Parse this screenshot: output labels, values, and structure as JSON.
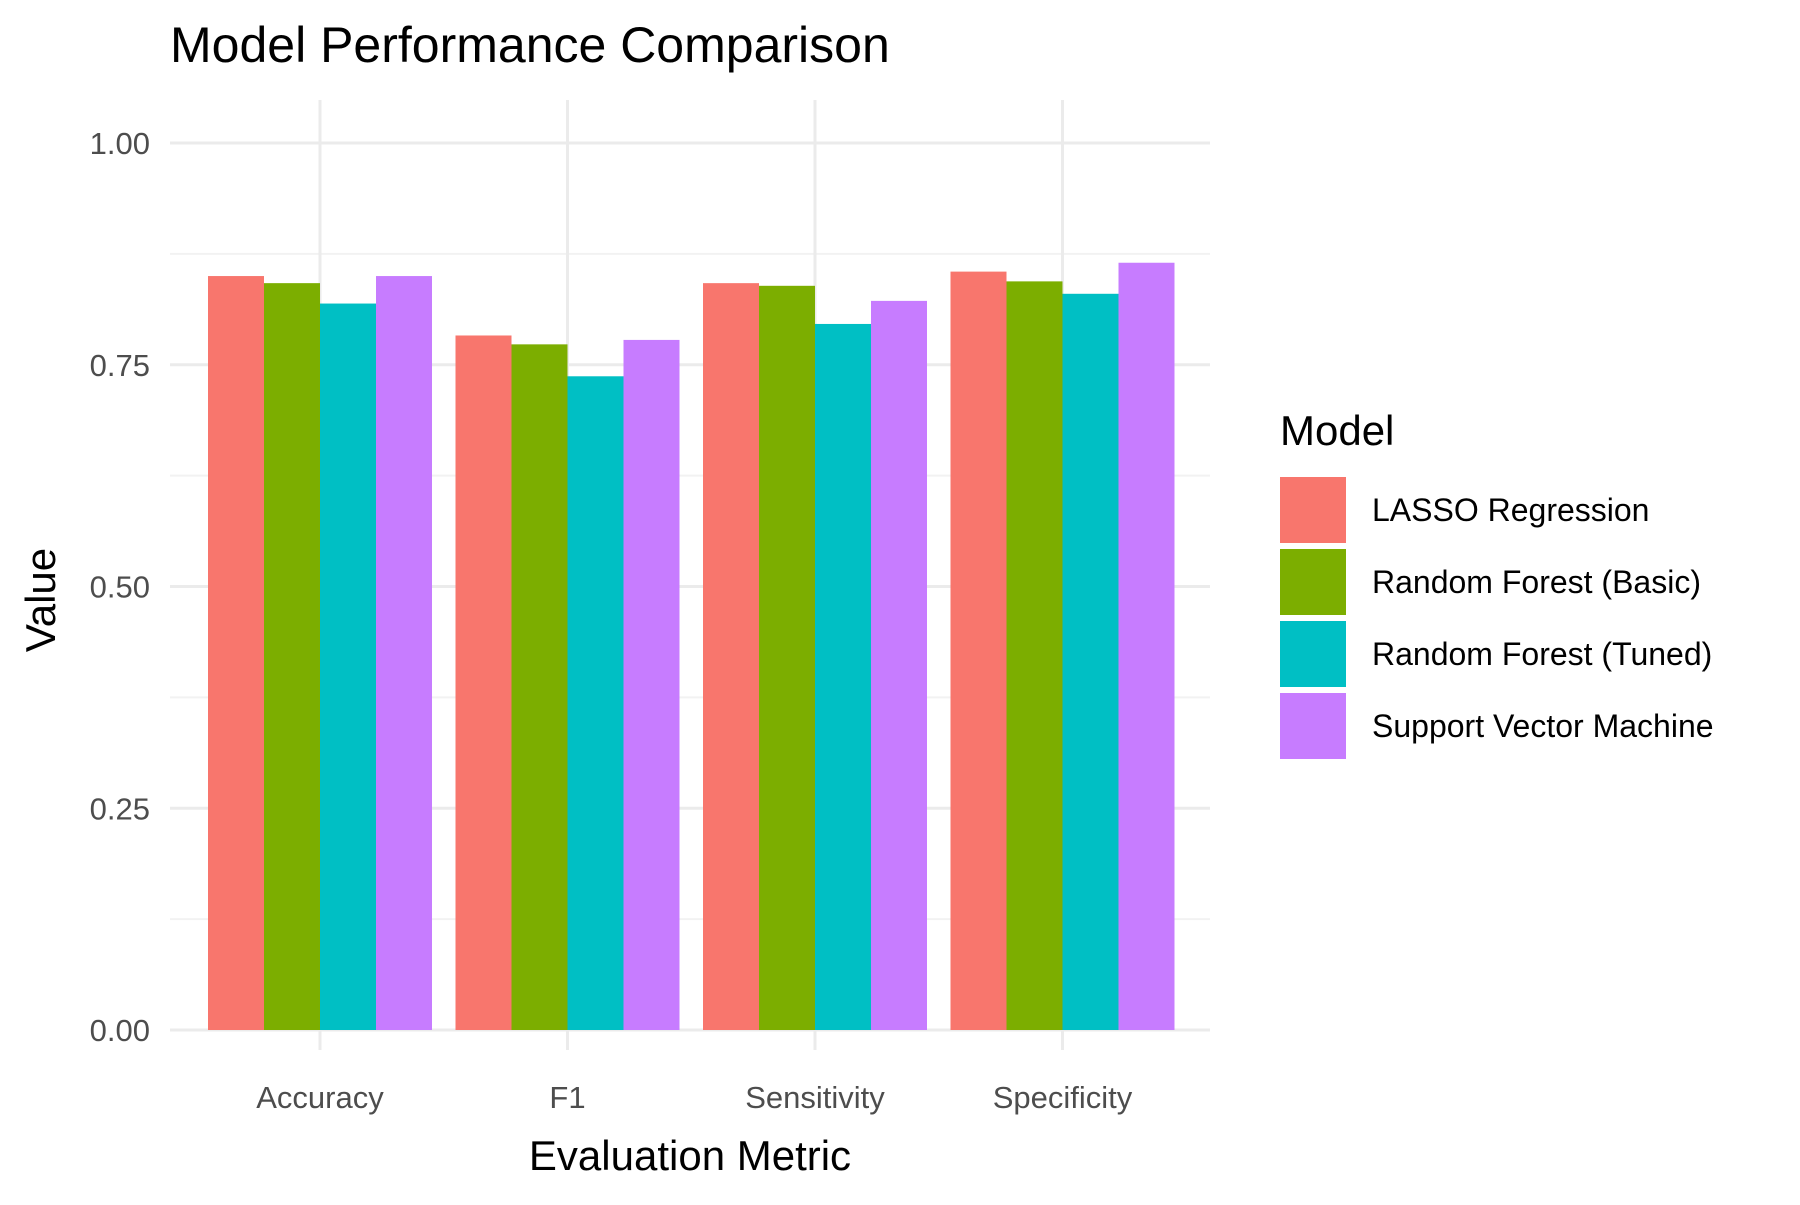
{
  "chart_data": {
    "type": "bar",
    "title": "Model Performance Comparison",
    "xlabel": "Evaluation Metric",
    "ylabel": "Value",
    "categories": [
      "Accuracy",
      "F1",
      "Sensitivity",
      "Specificity"
    ],
    "ylim": [
      0,
      1.0
    ],
    "yticks": [
      "0.00",
      "0.25",
      "0.50",
      "0.75",
      "1.00"
    ],
    "grid": true,
    "legend": {
      "title": "Model",
      "position": "right"
    },
    "series": [
      {
        "name": "LASSO Regression",
        "color": "#F8766D",
        "values": [
          0.85,
          0.783,
          0.842,
          0.855
        ]
      },
      {
        "name": "Random Forest (Basic)",
        "color": "#7CAE00",
        "values": [
          0.842,
          0.773,
          0.839,
          0.844
        ]
      },
      {
        "name": "Random Forest (Tuned)",
        "color": "#00BFC4",
        "values": [
          0.819,
          0.737,
          0.796,
          0.83
        ]
      },
      {
        "name": "Support Vector Machine",
        "color": "#C77CFF",
        "values": [
          0.85,
          0.778,
          0.822,
          0.865
        ]
      }
    ]
  }
}
